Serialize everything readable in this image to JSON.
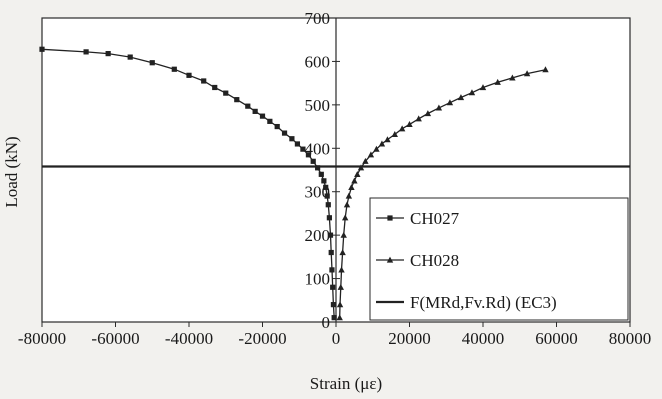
{
  "chart_data": {
    "type": "line",
    "xlabel": "Strain (με)",
    "ylabel": "Load (kN)",
    "xlim": [
      -80000,
      80000
    ],
    "ylim": [
      0,
      700
    ],
    "x_ticks": [
      -80000,
      -60000,
      -40000,
      -20000,
      0,
      20000,
      40000,
      60000,
      80000
    ],
    "y_ticks": [
      0,
      100,
      200,
      300,
      400,
      500,
      600,
      700
    ],
    "x_tick_labels": [
      "-80000",
      "-60000",
      "-40000",
      "-20000",
      "0",
      "20000",
      "40000",
      "60000",
      "80000"
    ],
    "y_tick_labels": [
      "0",
      "100",
      "200",
      "300",
      "400",
      "500",
      "600",
      "700"
    ],
    "grid": false,
    "legend_position": "bottom-right",
    "series": [
      {
        "name": "CH027",
        "marker": "square",
        "color": "#222222",
        "points": [
          [
            -500,
            10
          ],
          [
            -700,
            40
          ],
          [
            -900,
            80
          ],
          [
            -1100,
            120
          ],
          [
            -1300,
            160
          ],
          [
            -1500,
            200
          ],
          [
            -1800,
            240
          ],
          [
            -2100,
            270
          ],
          [
            -2400,
            290
          ],
          [
            -2800,
            310
          ],
          [
            -3300,
            325
          ],
          [
            -4000,
            340
          ],
          [
            -5000,
            355
          ],
          [
            -6200,
            370
          ],
          [
            -7500,
            385
          ],
          [
            -9000,
            398
          ],
          [
            -10500,
            410
          ],
          [
            -12000,
            422
          ],
          [
            -14000,
            435
          ],
          [
            -16000,
            450
          ],
          [
            -18000,
            462
          ],
          [
            -20000,
            474
          ],
          [
            -22000,
            485
          ],
          [
            -24000,
            497
          ],
          [
            -27000,
            512
          ],
          [
            -30000,
            527
          ],
          [
            -33000,
            540
          ],
          [
            -36000,
            555
          ],
          [
            -40000,
            568
          ],
          [
            -44000,
            582
          ],
          [
            -50000,
            597
          ],
          [
            -56000,
            610
          ],
          [
            -62000,
            618
          ],
          [
            -68000,
            622
          ],
          [
            -80000,
            628
          ]
        ]
      },
      {
        "name": "CH028",
        "marker": "triangle",
        "color": "#222222",
        "points": [
          [
            1000,
            10
          ],
          [
            1100,
            40
          ],
          [
            1300,
            80
          ],
          [
            1500,
            120
          ],
          [
            1800,
            160
          ],
          [
            2100,
            200
          ],
          [
            2500,
            240
          ],
          [
            3000,
            270
          ],
          [
            3500,
            290
          ],
          [
            4200,
            310
          ],
          [
            5000,
            325
          ],
          [
            5800,
            340
          ],
          [
            6800,
            355
          ],
          [
            8000,
            370
          ],
          [
            9500,
            385
          ],
          [
            11000,
            398
          ],
          [
            12500,
            410
          ],
          [
            14000,
            420
          ],
          [
            16000,
            432
          ],
          [
            18000,
            445
          ],
          [
            20000,
            455
          ],
          [
            22500,
            468
          ],
          [
            25000,
            480
          ],
          [
            28000,
            493
          ],
          [
            31000,
            505
          ],
          [
            34000,
            517
          ],
          [
            37000,
            528
          ],
          [
            40000,
            540
          ],
          [
            44000,
            552
          ],
          [
            48000,
            562
          ],
          [
            52000,
            572
          ],
          [
            57000,
            581
          ]
        ]
      },
      {
        "name": "F(MRd,Fv.Rd) (EC3)",
        "marker": "none",
        "color": "#222222",
        "points": [
          [
            -80000,
            358
          ],
          [
            80000,
            358
          ]
        ]
      }
    ]
  }
}
